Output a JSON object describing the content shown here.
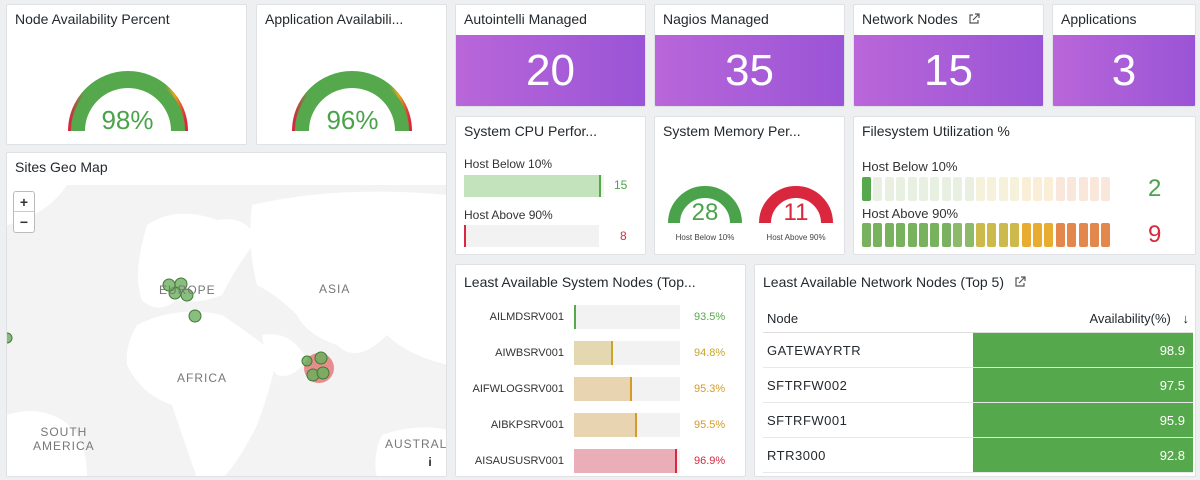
{
  "node_availability": {
    "title": "Node Availability Percent",
    "value_label": "98%",
    "value": 98
  },
  "app_availability": {
    "title": "Application Availabili...",
    "value_label": "96%",
    "value": 96
  },
  "stats": [
    {
      "title": "Autointelli Managed",
      "value": "20"
    },
    {
      "title": "Nagios Managed",
      "value": "35"
    },
    {
      "title": "Network Nodes",
      "value": "15"
    },
    {
      "title": "Applications",
      "value": "3"
    }
  ],
  "cpu": {
    "title": "System CPU Perfor...",
    "below_label": "Host Below 10%",
    "below_value": "15",
    "below_fraction": 0.98,
    "above_label": "Host Above 90%",
    "above_value": "8",
    "above_fraction": 0.01
  },
  "memory": {
    "title": "System Memory Per...",
    "gauges": [
      {
        "value": "28",
        "caption": "Host Below 10%",
        "color": "#4aa34a"
      },
      {
        "value": "11",
        "caption": "Host Above 90%",
        "color": "#d9273e"
      }
    ]
  },
  "filesystem": {
    "title": "Filesystem Utilization %",
    "below_label": "Host Below 10%",
    "below_value": "2",
    "above_label": "Host Above 90%",
    "above_value": "9"
  },
  "map": {
    "title": "Sites Geo Map",
    "zoom_in": "+",
    "zoom_out": "−",
    "labels": {
      "europe": "EUROPE",
      "asia": "ASIA",
      "africa": "AFRICA",
      "south_america": "SOUTH\nAMERICA",
      "australia": "AUSTRAL"
    },
    "info": "i"
  },
  "least_system": {
    "title": "Least Available System Nodes (Top...",
    "rows": [
      {
        "name": "AILMDSRV001",
        "value": "93.5%",
        "color": "#55a84b",
        "fraction": 0.02
      },
      {
        "name": "AIWBSRV001",
        "value": "94.8%",
        "color": "#c9a52a",
        "fraction": 0.37
      },
      {
        "name": "AIFWLOGSRV001",
        "value": "95.3%",
        "color": "#d69a29",
        "fraction": 0.55
      },
      {
        "name": "AIBKPSRV001",
        "value": "95.5%",
        "color": "#d69a29",
        "fraction": 0.59
      },
      {
        "name": "AISAUSUSRV001",
        "value": "96.9%",
        "color": "#d9273e",
        "fraction": 0.97
      }
    ]
  },
  "least_network": {
    "title": "Least Available Network Nodes (Top 5)",
    "col_node": "Node",
    "col_avail": "Availability(%)",
    "sort_icon": "↓",
    "rows": [
      {
        "node": "GATEWAYRTR",
        "avail": "98.9"
      },
      {
        "node": "SFTRFW002",
        "avail": "97.5"
      },
      {
        "node": "SFTRFW001",
        "avail": "95.9"
      },
      {
        "node": "RTR3000",
        "avail": "92.8"
      }
    ]
  }
}
